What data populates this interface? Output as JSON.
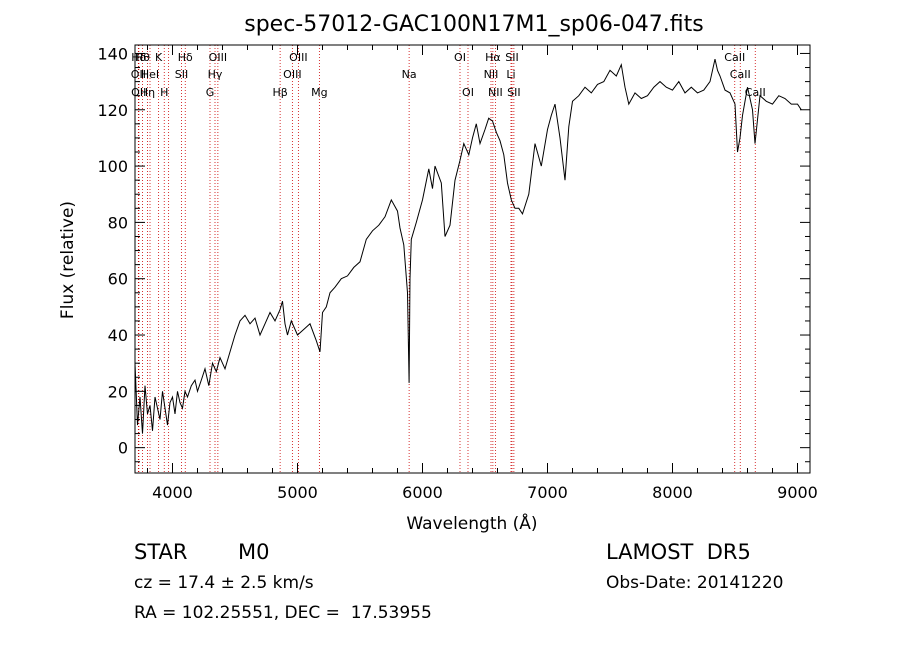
{
  "chart_data": {
    "type": "line",
    "title": "spec-57012-GAC100N17M1_sp06-047.fits",
    "xlabel": "Wavelength (Å)",
    "ylabel": "Flux (relative)",
    "xlim": [
      3700,
      9100
    ],
    "ylim": [
      -9,
      143
    ],
    "xticks": [
      4000,
      5000,
      6000,
      7000,
      8000,
      9000
    ],
    "yticks": [
      0,
      20,
      40,
      60,
      80,
      100,
      120,
      140
    ],
    "grid": false,
    "series": [
      {
        "x": [
          3700,
          3720,
          3740,
          3760,
          3780,
          3800,
          3820,
          3840,
          3860,
          3880,
          3900,
          3920,
          3940,
          3960,
          3980,
          4000,
          4020,
          4040,
          4060,
          4080,
          4100,
          4120,
          4150,
          4180,
          4200,
          4230,
          4260,
          4290,
          4320,
          4350,
          4380,
          4420,
          4460,
          4500,
          4540,
          4580,
          4620,
          4660,
          4700,
          4740,
          4780,
          4820,
          4860,
          4880,
          4900,
          4920,
          4950,
          5000,
          5050,
          5100,
          5150,
          5180,
          5200,
          5230,
          5260,
          5300,
          5350,
          5400,
          5450,
          5500,
          5550,
          5600,
          5650,
          5700,
          5750,
          5800,
          5820,
          5850,
          5880,
          5893,
          5900,
          5910,
          5950,
          6000,
          6050,
          6080,
          6100,
          6150,
          6180,
          6220,
          6260,
          6300,
          6330,
          6370,
          6400,
          6430,
          6460,
          6500,
          6530,
          6560,
          6590,
          6620,
          6650,
          6680,
          6710,
          6740,
          6770,
          6800,
          6850,
          6900,
          6950,
          7000,
          7030,
          7060,
          7100,
          7140,
          7170,
          7200,
          7250,
          7300,
          7350,
          7400,
          7450,
          7500,
          7550,
          7590,
          7620,
          7650,
          7700,
          7750,
          7800,
          7850,
          7900,
          7950,
          8000,
          8050,
          8100,
          8150,
          8200,
          8250,
          8300,
          8340,
          8360,
          8380,
          8420,
          8460,
          8500,
          8520,
          8540,
          8560,
          8600,
          8640,
          8660,
          8700,
          8750,
          8800,
          8850,
          8900,
          8950,
          9000,
          9030
        ],
        "y": [
          30,
          8,
          18,
          5,
          22,
          12,
          15,
          6,
          18,
          14,
          10,
          20,
          14,
          8,
          16,
          18,
          12,
          20,
          16,
          14,
          20,
          18,
          22,
          24,
          20,
          24,
          28,
          22,
          30,
          27,
          32,
          28,
          34,
          40,
          45,
          47,
          44,
          46,
          40,
          44,
          48,
          45,
          49,
          52,
          44,
          40,
          45,
          40,
          42,
          44,
          38,
          34,
          48,
          50,
          55,
          57,
          60,
          61,
          64,
          66,
          74,
          77,
          79,
          82,
          88,
          84,
          78,
          72,
          55,
          23,
          60,
          74,
          80,
          88,
          99,
          92,
          100,
          94,
          75,
          79,
          95,
          102,
          108,
          104,
          110,
          115,
          108,
          113,
          117,
          116,
          112,
          109,
          104,
          94,
          88,
          85,
          85,
          83,
          90,
          108,
          100,
          113,
          118,
          122,
          110,
          95,
          114,
          123,
          125,
          128,
          126,
          129,
          130,
          134,
          132,
          136,
          128,
          122,
          126,
          124,
          125,
          128,
          130,
          128,
          127,
          130,
          126,
          128,
          126,
          127,
          130,
          138,
          134,
          132,
          127,
          126,
          122,
          105,
          110,
          118,
          128,
          120,
          108,
          125,
          123,
          122,
          125,
          124,
          122,
          122,
          120
        ]
      }
    ],
    "lines": [
      {
        "x": 3730,
        "label": "Hδ",
        "row": 1
      },
      {
        "x": 3727,
        "label": "OII",
        "row": 2
      },
      {
        "x": 3730,
        "label": "OII",
        "row": 3
      },
      {
        "x": 3760,
        "label": "Hθ",
        "row": 1
      },
      {
        "x": 3800,
        "label": "Hη",
        "row": 3
      },
      {
        "x": 3820,
        "label": "HeI",
        "row": 2
      },
      {
        "x": 3889,
        "label": "K",
        "row": 1
      },
      {
        "x": 3934,
        "label": "H",
        "row": 3
      },
      {
        "x": 3969,
        "label": "",
        "row": 0
      },
      {
        "x": 4072,
        "label": "SII",
        "row": 2
      },
      {
        "x": 4102,
        "label": "Hδ",
        "row": 1
      },
      {
        "x": 4300,
        "label": "G",
        "row": 3
      },
      {
        "x": 4340,
        "label": "Hγ",
        "row": 2
      },
      {
        "x": 4363,
        "label": "OIII",
        "row": 1
      },
      {
        "x": 4861,
        "label": "Hβ",
        "row": 3
      },
      {
        "x": 4959,
        "label": "OIII",
        "row": 2
      },
      {
        "x": 5007,
        "label": "OIII",
        "row": 1
      },
      {
        "x": 5175,
        "label": "Mg",
        "row": 3
      },
      {
        "x": 5893,
        "label": "Na",
        "row": 2
      },
      {
        "x": 6300,
        "label": "OI",
        "row": 1
      },
      {
        "x": 6364,
        "label": "OI",
        "row": 3
      },
      {
        "x": 6548,
        "label": "NII",
        "row": 2
      },
      {
        "x": 6563,
        "label": "Hα",
        "row": 1
      },
      {
        "x": 6583,
        "label": "NII",
        "row": 3
      },
      {
        "x": 6708,
        "label": "Li",
        "row": 2
      },
      {
        "x": 6716,
        "label": "SII",
        "row": 1
      },
      {
        "x": 6731,
        "label": "SII",
        "row": 3
      },
      {
        "x": 8498,
        "label": "CaII",
        "row": 1
      },
      {
        "x": 8542,
        "label": "CaII",
        "row": 2
      },
      {
        "x": 8662,
        "label": "CaII",
        "row": 3
      }
    ]
  },
  "info": {
    "class_label": "STAR",
    "subclass": "M0",
    "cz": "cz = 17.4 ± 2.5 km/s",
    "coords": "RA = 102.25551, DEC =  17.53955",
    "survey": "LAMOST  DR5",
    "obs_date": "Obs-Date: 20141220"
  },
  "colors": {
    "spectrum": "#000000",
    "line_markers": "#cc0000",
    "text": "#000000"
  }
}
